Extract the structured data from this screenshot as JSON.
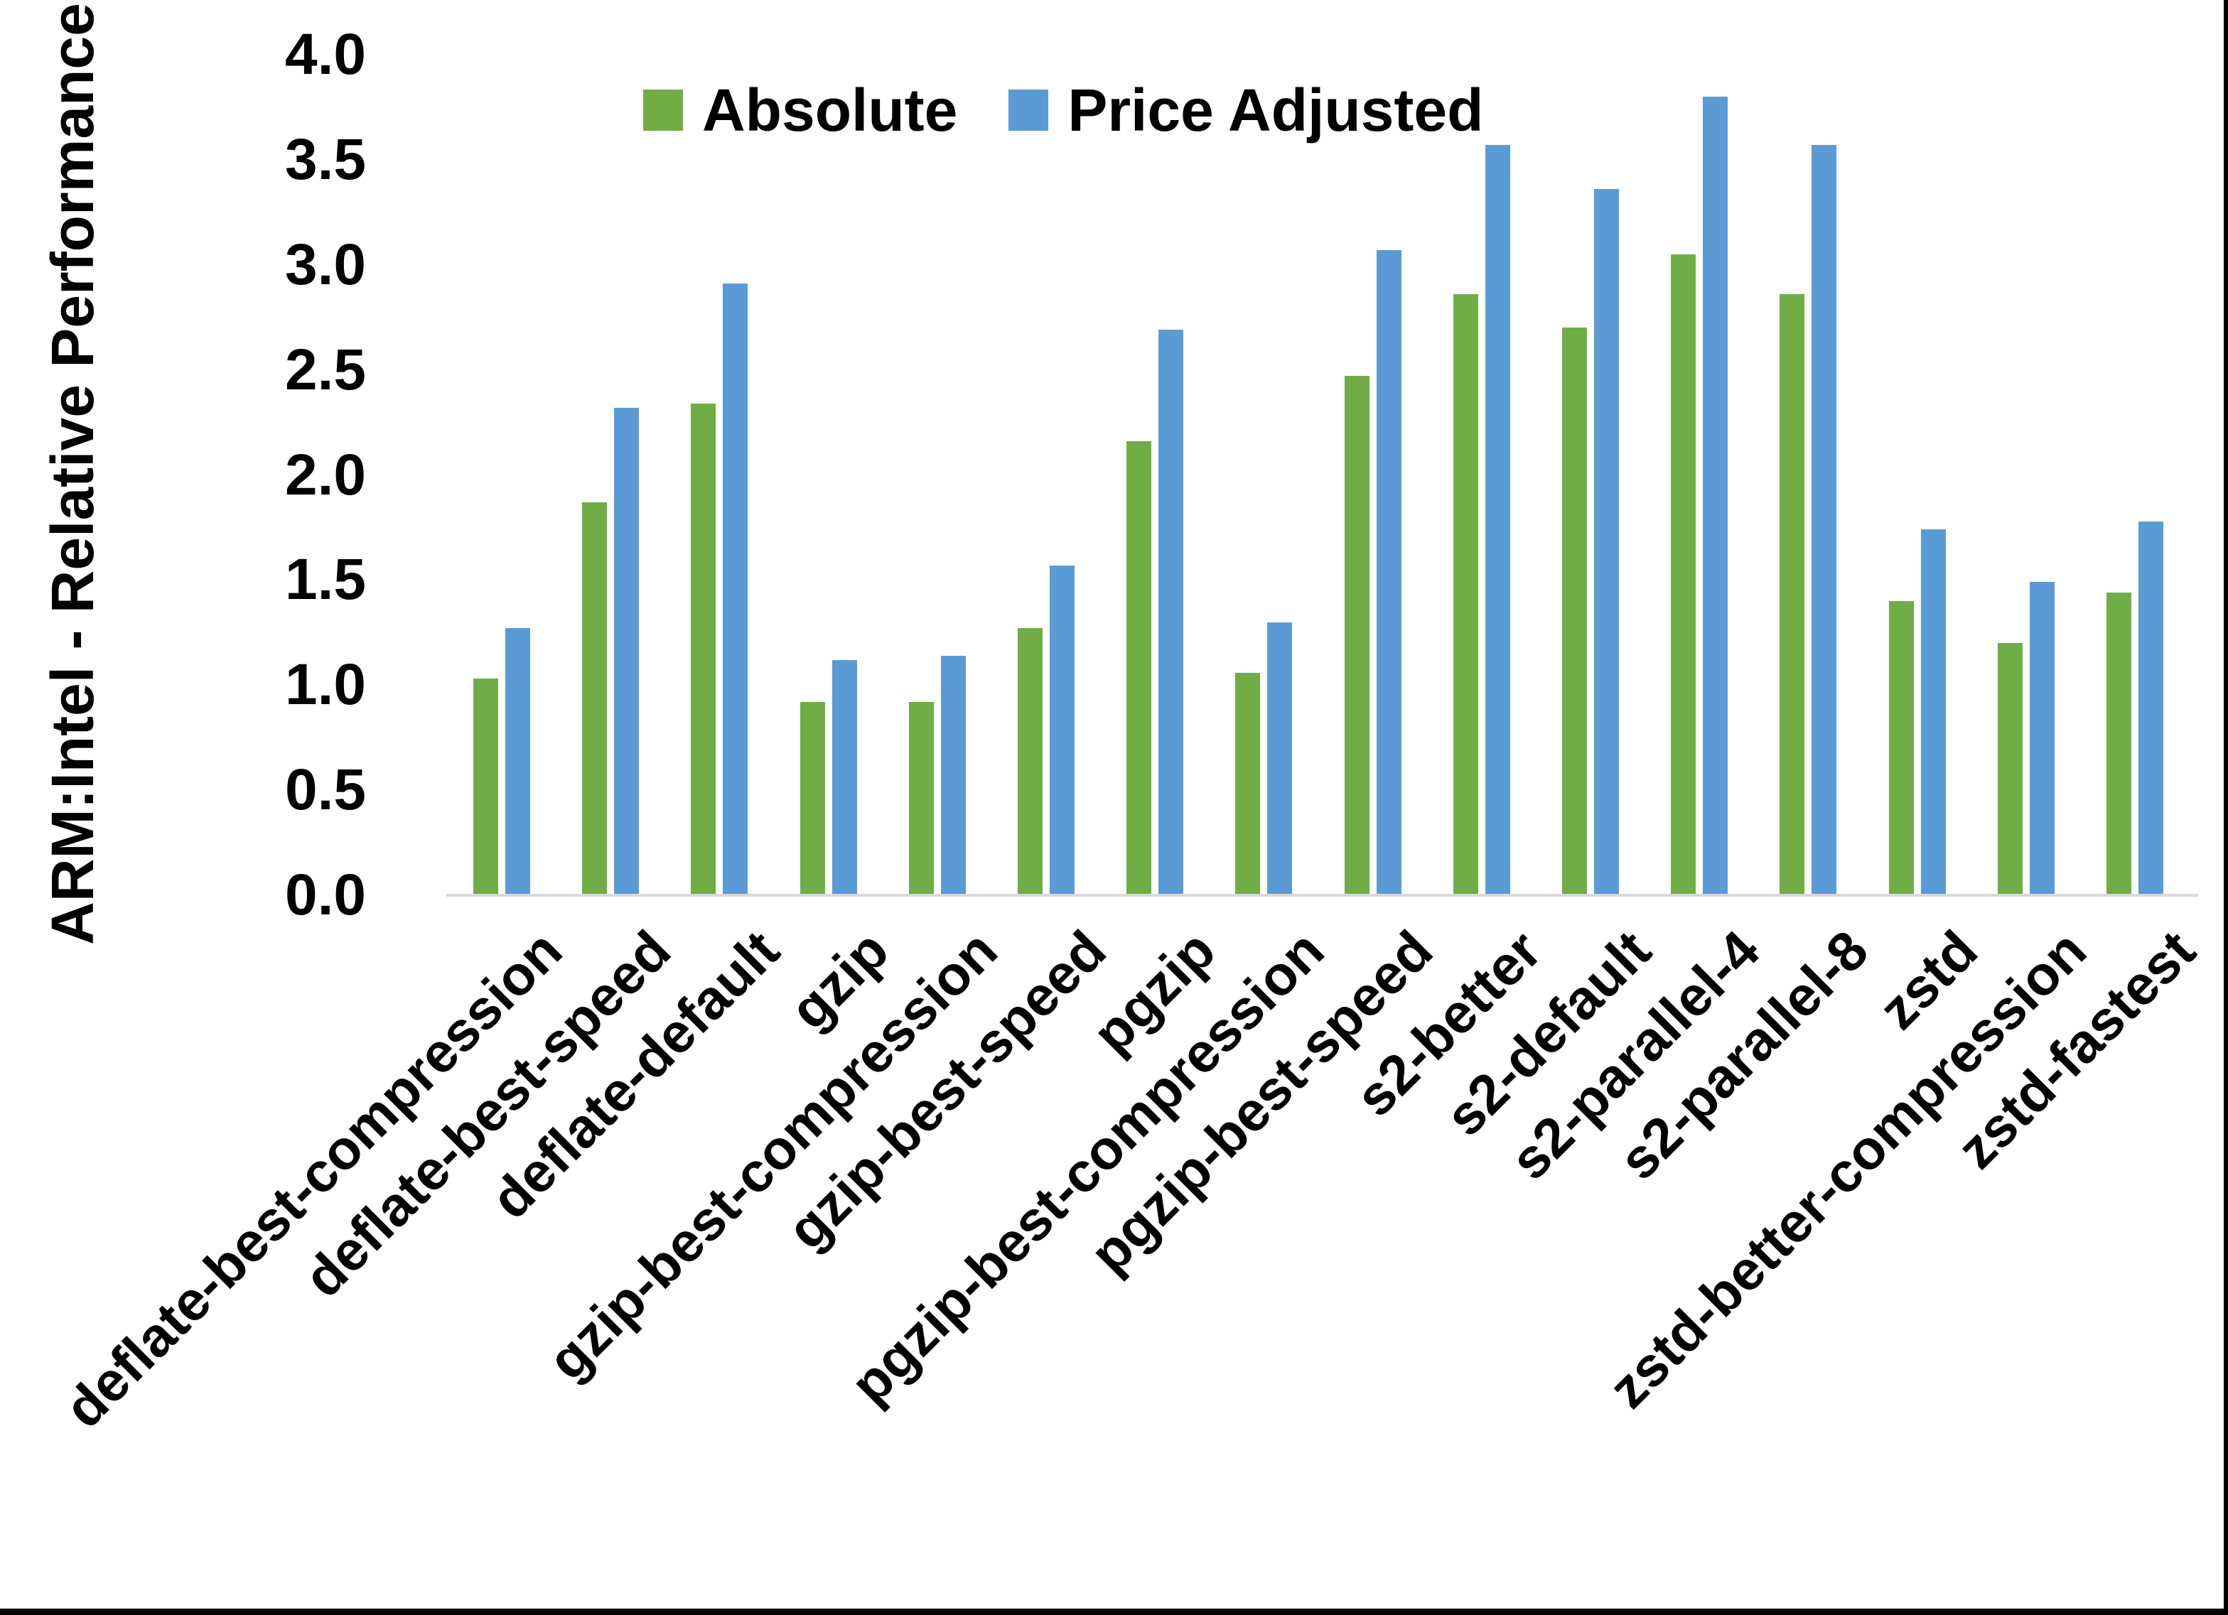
{
  "chart_data": {
    "type": "bar",
    "title": "",
    "ylabel": "ARM:Intel - Relative Performance",
    "xlabel": "",
    "ylim": [
      0.0,
      4.0
    ],
    "ytick_step": 0.5,
    "yticks": [
      "0.0",
      "0.5",
      "1.0",
      "1.5",
      "2.0",
      "2.5",
      "3.0",
      "3.5",
      "4.0"
    ],
    "grid": false,
    "legend_position": "top-center",
    "categories": [
      "deflate-best-compression",
      "deflate-best-speed",
      "deflate-default",
      "gzip",
      "gzip-best-compression",
      "gzip-best-speed",
      "pgzip",
      "pgzip-best-compression",
      "pgzip-best-speed",
      "s2-better",
      "s2-default",
      "s2-parallel-4",
      "s2-parallel-8",
      "zstd",
      "zstd-better-compression",
      "zstd-fastest"
    ],
    "series": [
      {
        "name": "Absolute",
        "color": "#70AD47",
        "values": [
          1.03,
          1.87,
          2.34,
          0.92,
          0.92,
          1.27,
          2.16,
          1.06,
          2.47,
          2.86,
          2.7,
          3.05,
          2.86,
          1.4,
          1.2,
          1.44
        ]
      },
      {
        "name": "Price Adjusted",
        "color": "#5B9BD5",
        "values": [
          1.27,
          2.32,
          2.91,
          1.12,
          1.14,
          1.57,
          2.69,
          1.3,
          3.07,
          3.57,
          3.36,
          3.8,
          3.57,
          1.74,
          1.49,
          1.78
        ]
      }
    ],
    "colors": {
      "axis_line": "#D9D9D9",
      "text": "#000000",
      "border": "#000000",
      "background": "#FFFFFF"
    }
  }
}
